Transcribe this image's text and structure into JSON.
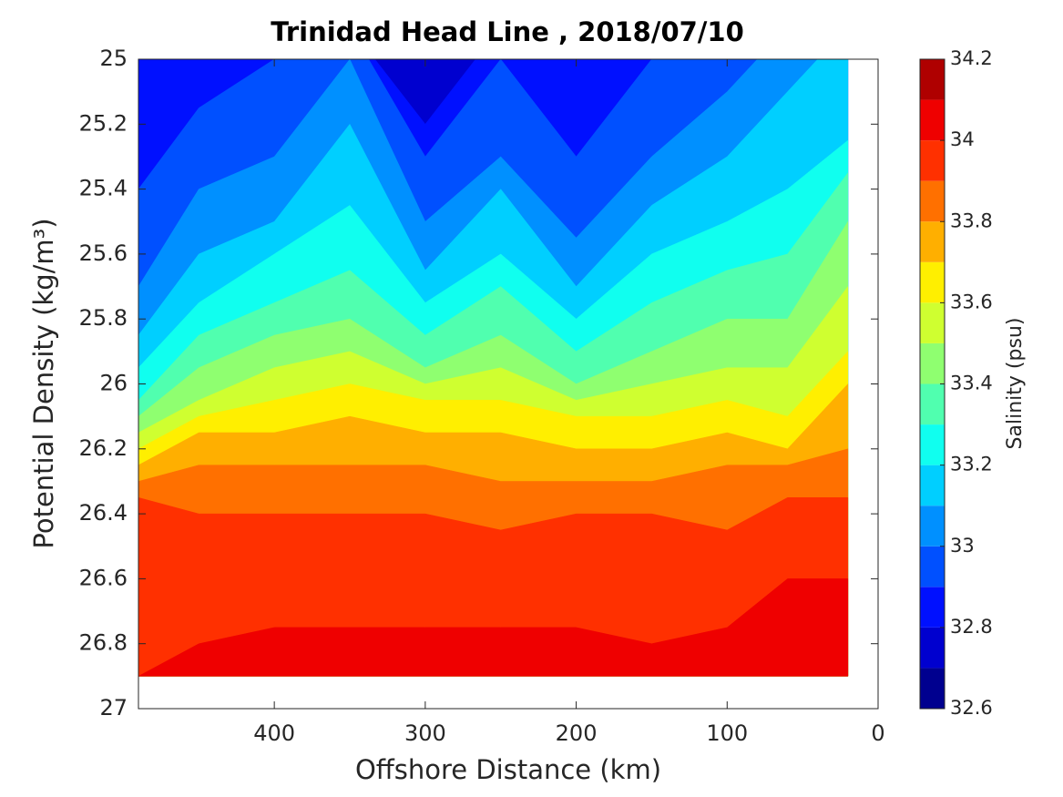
{
  "chart_data": {
    "type": "contourf",
    "title": "Trinidad Head Line , 2018/07/10",
    "xlabel": "Offshore Distance (km)",
    "ylabel": "Potential Density (kg/m³)",
    "xlim": [
      490,
      0
    ],
    "xticks": [
      400,
      300,
      200,
      100,
      0
    ],
    "ylim": [
      27,
      25
    ],
    "yticks": [
      25,
      25.2,
      25.4,
      25.6,
      25.8,
      26,
      26.2,
      26.4,
      26.6,
      26.8,
      27
    ],
    "x": [
      490,
      450,
      400,
      350,
      300,
      250,
      200,
      150,
      100,
      60,
      20
    ],
    "bottom": 26.9,
    "contours": [
      {
        "level": 32.8,
        "values": [
          24.9,
          24.9,
          24.9,
          24.9,
          25.2,
          24.9,
          24.9,
          24.9,
          24.9,
          24.9,
          24.9
        ]
      },
      {
        "level": 32.9,
        "values": [
          25.4,
          25.15,
          25.0,
          24.9,
          25.3,
          25.0,
          25.3,
          25.0,
          24.9,
          24.9,
          24.9
        ]
      },
      {
        "level": 33.0,
        "values": [
          25.7,
          25.4,
          25.3,
          25.0,
          25.5,
          25.3,
          25.55,
          25.3,
          25.1,
          24.9,
          24.9
        ]
      },
      {
        "level": 33.1,
        "values": [
          25.85,
          25.6,
          25.5,
          25.2,
          25.65,
          25.4,
          25.7,
          25.45,
          25.3,
          25.1,
          24.9
        ]
      },
      {
        "level": 33.2,
        "values": [
          25.95,
          25.75,
          25.6,
          25.45,
          25.75,
          25.6,
          25.8,
          25.6,
          25.5,
          25.4,
          25.25
        ]
      },
      {
        "level": 33.3,
        "values": [
          26.05,
          25.85,
          25.75,
          25.65,
          25.85,
          25.7,
          25.9,
          25.75,
          25.65,
          25.6,
          25.35
        ]
      },
      {
        "level": 33.4,
        "values": [
          26.1,
          25.95,
          25.85,
          25.8,
          25.95,
          25.85,
          26.0,
          25.9,
          25.8,
          25.8,
          25.5
        ]
      },
      {
        "level": 33.5,
        "values": [
          26.15,
          26.05,
          25.95,
          25.9,
          26.0,
          25.95,
          26.05,
          26.0,
          25.95,
          25.95,
          25.7
        ]
      },
      {
        "level": 33.6,
        "values": [
          26.2,
          26.1,
          26.05,
          26.0,
          26.05,
          26.05,
          26.1,
          26.1,
          26.05,
          26.1,
          25.9
        ]
      },
      {
        "level": 33.7,
        "values": [
          26.25,
          26.15,
          26.15,
          26.1,
          26.15,
          26.15,
          26.2,
          26.2,
          26.15,
          26.2,
          26.0
        ]
      },
      {
        "level": 33.8,
        "values": [
          26.3,
          26.25,
          26.25,
          26.25,
          26.25,
          26.3,
          26.3,
          26.3,
          26.25,
          26.25,
          26.2
        ]
      },
      {
        "level": 33.9,
        "values": [
          26.35,
          26.4,
          26.4,
          26.4,
          26.4,
          26.45,
          26.4,
          26.4,
          26.45,
          26.35,
          26.35
        ]
      },
      {
        "level": 34.0,
        "values": [
          26.9,
          26.8,
          26.75,
          26.75,
          26.75,
          26.75,
          26.75,
          26.8,
          26.75,
          26.6,
          26.6
        ]
      }
    ],
    "colorbar": {
      "label": "Salinity (psu)",
      "lim": [
        32.6,
        34.2
      ],
      "ticks": [
        32.6,
        32.8,
        33,
        33.2,
        33.4,
        33.6,
        33.8,
        34,
        34.2
      ],
      "colors": [
        "#00008f",
        "#0000cf",
        "#0010ff",
        "#0050ff",
        "#0090ff",
        "#00cfff",
        "#10ffef",
        "#50ffaf",
        "#8fff70",
        "#cfff30",
        "#ffef00",
        "#ffaf00",
        "#ff7000",
        "#ff3000",
        "#ef0000",
        "#af0000"
      ]
    }
  }
}
